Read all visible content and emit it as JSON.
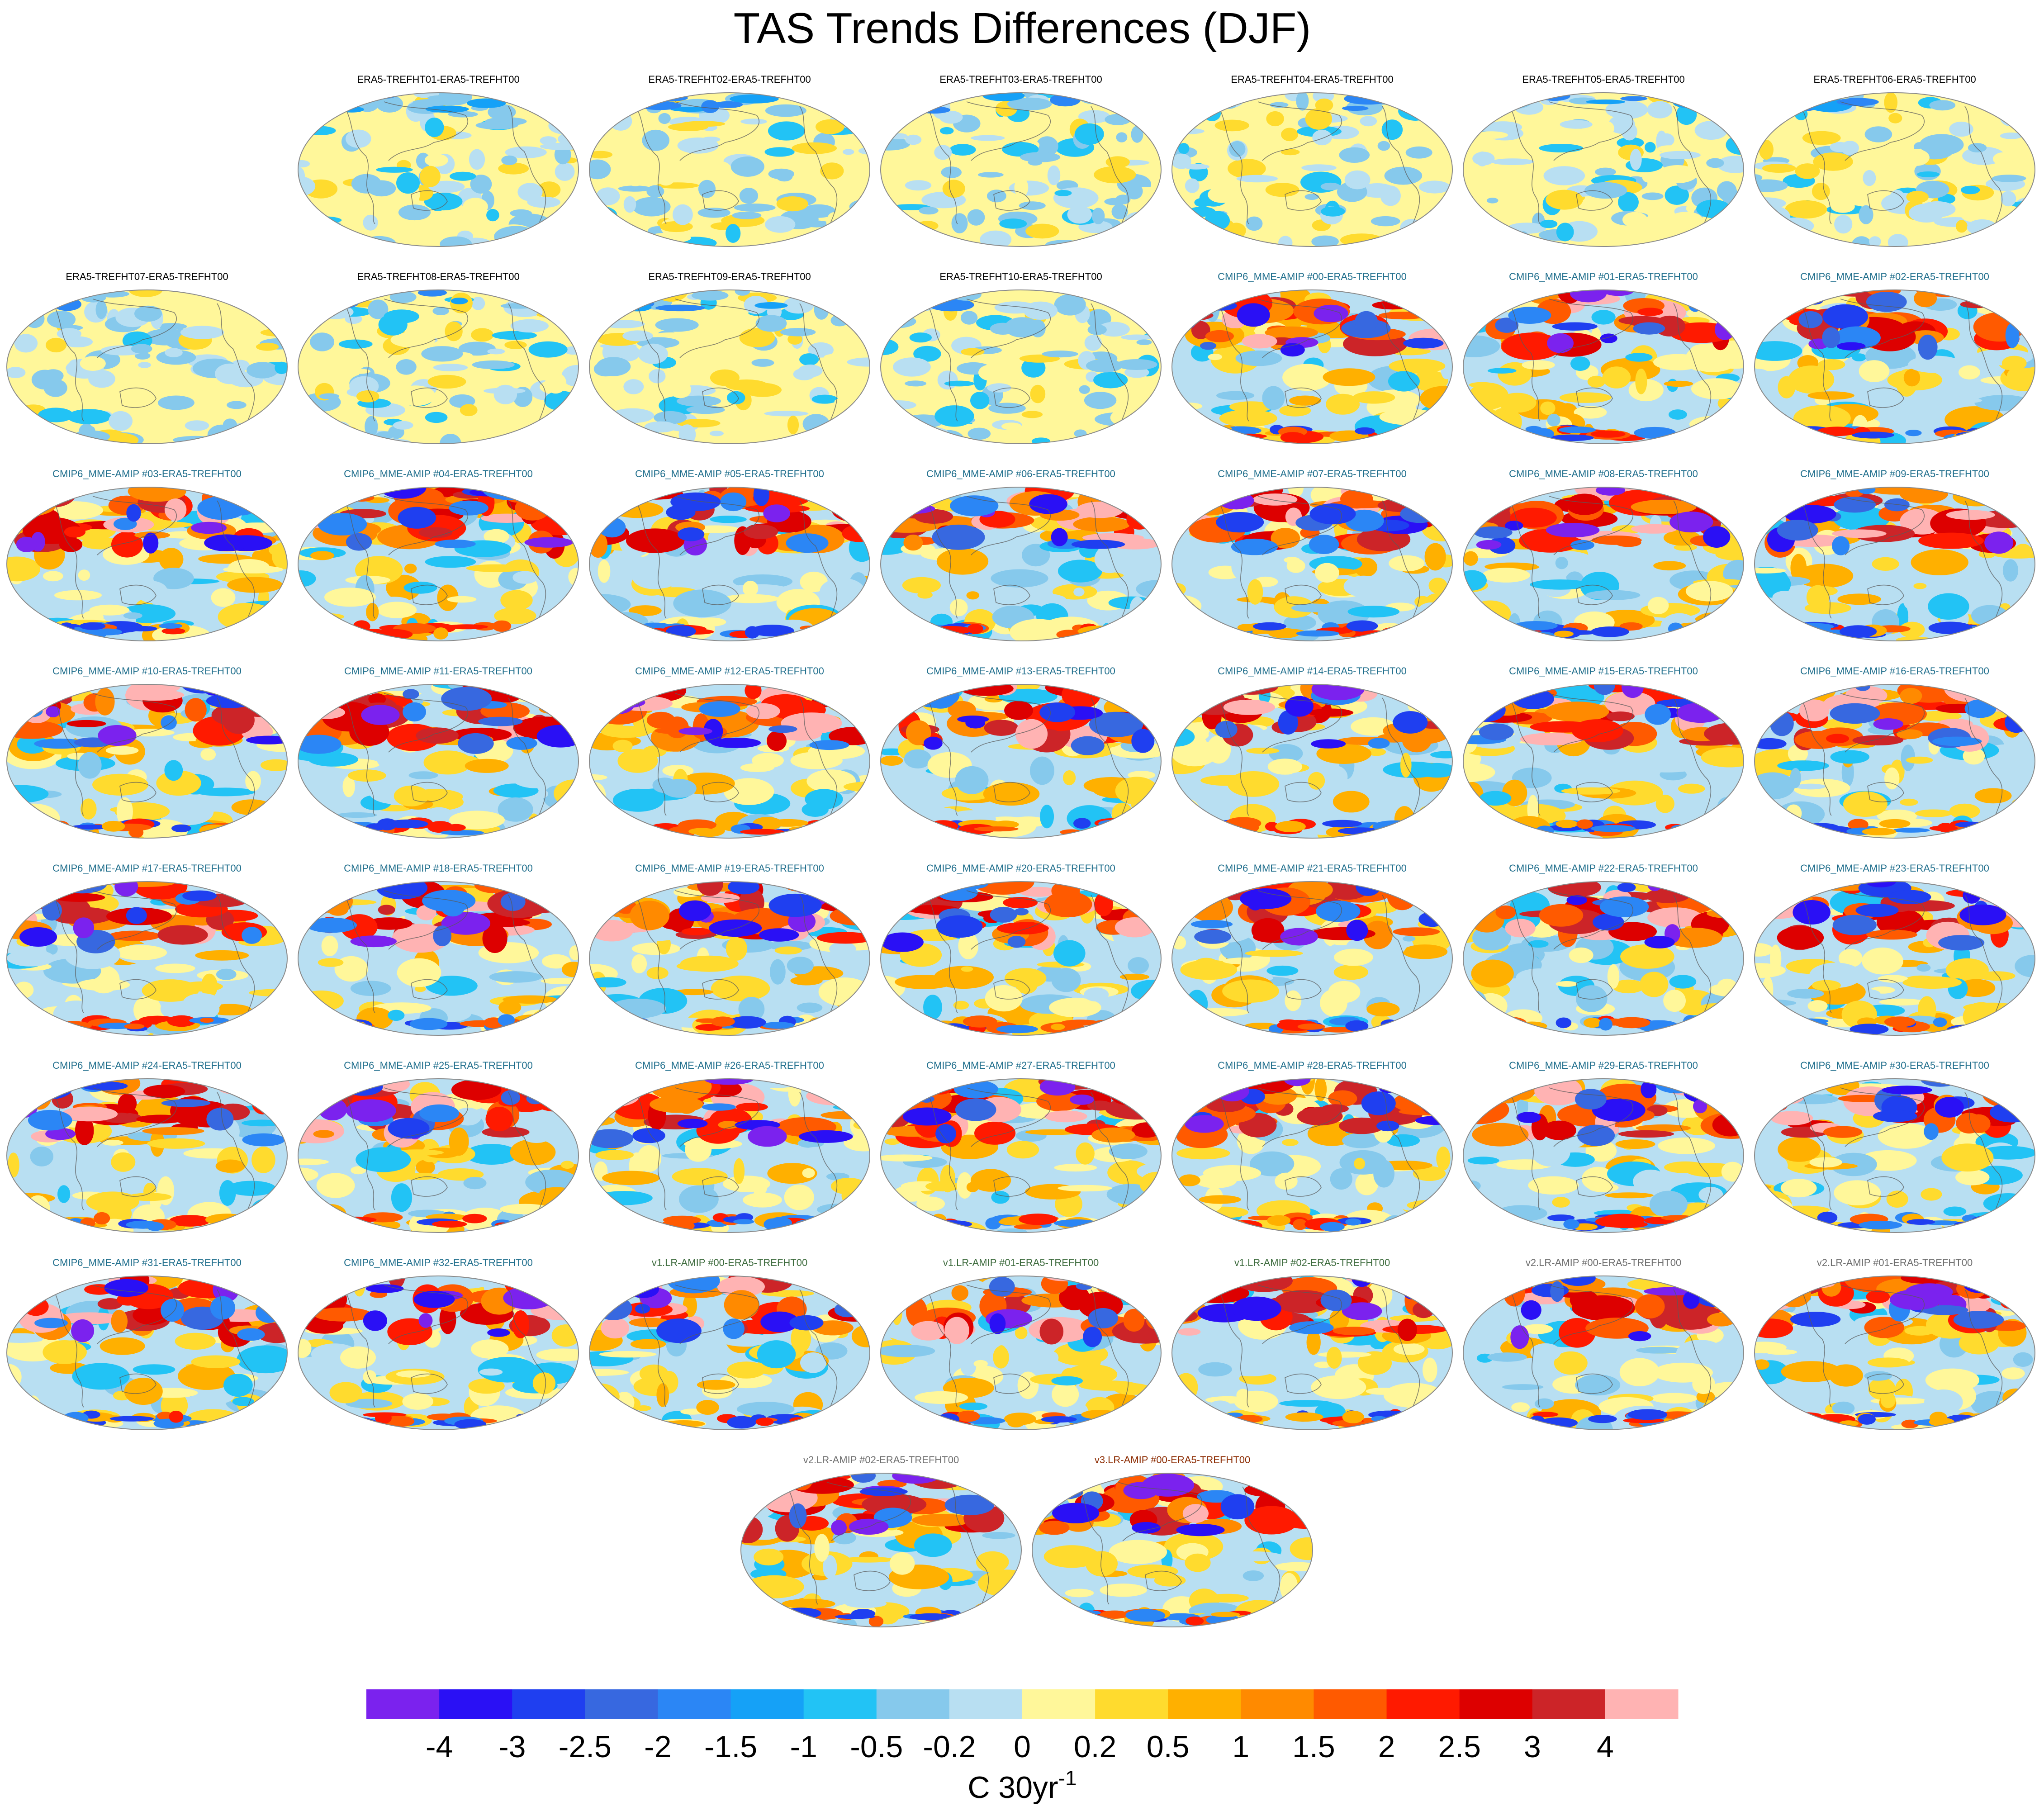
{
  "chart_data": {
    "type": "heatmap",
    "title": "TAS Trends Differences (DJF)",
    "projection": "Robinson-like global maps, one panel per ensemble member",
    "panels": [
      {
        "label": "ERA5-TREFHT01-ERA5-TREFHT00",
        "group": "era5",
        "color": "#000000"
      },
      {
        "label": "ERA5-TREFHT02-ERA5-TREFHT00",
        "group": "era5",
        "color": "#000000"
      },
      {
        "label": "ERA5-TREFHT03-ERA5-TREFHT00",
        "group": "era5",
        "color": "#000000"
      },
      {
        "label": "ERA5-TREFHT04-ERA5-TREFHT00",
        "group": "era5",
        "color": "#000000"
      },
      {
        "label": "ERA5-TREFHT05-ERA5-TREFHT00",
        "group": "era5",
        "color": "#000000"
      },
      {
        "label": "ERA5-TREFHT06-ERA5-TREFHT00",
        "group": "era5",
        "color": "#000000"
      },
      {
        "label": "ERA5-TREFHT07-ERA5-TREFHT00",
        "group": "era5",
        "color": "#000000"
      },
      {
        "label": "ERA5-TREFHT08-ERA5-TREFHT00",
        "group": "era5",
        "color": "#000000"
      },
      {
        "label": "ERA5-TREFHT09-ERA5-TREFHT00",
        "group": "era5",
        "color": "#000000"
      },
      {
        "label": "ERA5-TREFHT10-ERA5-TREFHT00",
        "group": "era5",
        "color": "#000000"
      },
      {
        "label": "CMIP6_MME-AMIP  #00-ERA5-TREFHT00",
        "group": "cmip6",
        "color": "#1f6e8c"
      },
      {
        "label": "CMIP6_MME-AMIP  #01-ERA5-TREFHT00",
        "group": "cmip6",
        "color": "#1f6e8c"
      },
      {
        "label": "CMIP6_MME-AMIP  #02-ERA5-TREFHT00",
        "group": "cmip6",
        "color": "#1f6e8c"
      },
      {
        "label": "CMIP6_MME-AMIP  #03-ERA5-TREFHT00",
        "group": "cmip6",
        "color": "#1f6e8c"
      },
      {
        "label": "CMIP6_MME-AMIP  #04-ERA5-TREFHT00",
        "group": "cmip6",
        "color": "#1f6e8c"
      },
      {
        "label": "CMIP6_MME-AMIP  #05-ERA5-TREFHT00",
        "group": "cmip6",
        "color": "#1f6e8c"
      },
      {
        "label": "CMIP6_MME-AMIP  #06-ERA5-TREFHT00",
        "group": "cmip6",
        "color": "#1f6e8c"
      },
      {
        "label": "CMIP6_MME-AMIP  #07-ERA5-TREFHT00",
        "group": "cmip6",
        "color": "#1f6e8c"
      },
      {
        "label": "CMIP6_MME-AMIP  #08-ERA5-TREFHT00",
        "group": "cmip6",
        "color": "#1f6e8c"
      },
      {
        "label": "CMIP6_MME-AMIP  #09-ERA5-TREFHT00",
        "group": "cmip6",
        "color": "#1f6e8c"
      },
      {
        "label": "CMIP6_MME-AMIP  #10-ERA5-TREFHT00",
        "group": "cmip6",
        "color": "#1f6e8c"
      },
      {
        "label": "CMIP6_MME-AMIP  #11-ERA5-TREFHT00",
        "group": "cmip6",
        "color": "#1f6e8c"
      },
      {
        "label": "CMIP6_MME-AMIP  #12-ERA5-TREFHT00",
        "group": "cmip6",
        "color": "#1f6e8c"
      },
      {
        "label": "CMIP6_MME-AMIP  #13-ERA5-TREFHT00",
        "group": "cmip6",
        "color": "#1f6e8c"
      },
      {
        "label": "CMIP6_MME-AMIP  #14-ERA5-TREFHT00",
        "group": "cmip6",
        "color": "#1f6e8c"
      },
      {
        "label": "CMIP6_MME-AMIP  #15-ERA5-TREFHT00",
        "group": "cmip6",
        "color": "#1f6e8c"
      },
      {
        "label": "CMIP6_MME-AMIP  #16-ERA5-TREFHT00",
        "group": "cmip6",
        "color": "#1f6e8c"
      },
      {
        "label": "CMIP6_MME-AMIP  #17-ERA5-TREFHT00",
        "group": "cmip6",
        "color": "#1f6e8c"
      },
      {
        "label": "CMIP6_MME-AMIP  #18-ERA5-TREFHT00",
        "group": "cmip6",
        "color": "#1f6e8c"
      },
      {
        "label": "CMIP6_MME-AMIP  #19-ERA5-TREFHT00",
        "group": "cmip6",
        "color": "#1f6e8c"
      },
      {
        "label": "CMIP6_MME-AMIP  #20-ERA5-TREFHT00",
        "group": "cmip6",
        "color": "#1f6e8c"
      },
      {
        "label": "CMIP6_MME-AMIP  #21-ERA5-TREFHT00",
        "group": "cmip6",
        "color": "#1f6e8c"
      },
      {
        "label": "CMIP6_MME-AMIP  #22-ERA5-TREFHT00",
        "group": "cmip6",
        "color": "#1f6e8c"
      },
      {
        "label": "CMIP6_MME-AMIP  #23-ERA5-TREFHT00",
        "group": "cmip6",
        "color": "#1f6e8c"
      },
      {
        "label": "CMIP6_MME-AMIP  #24-ERA5-TREFHT00",
        "group": "cmip6",
        "color": "#1f6e8c"
      },
      {
        "label": "CMIP6_MME-AMIP  #25-ERA5-TREFHT00",
        "group": "cmip6",
        "color": "#1f6e8c"
      },
      {
        "label": "CMIP6_MME-AMIP  #26-ERA5-TREFHT00",
        "group": "cmip6",
        "color": "#1f6e8c"
      },
      {
        "label": "CMIP6_MME-AMIP  #27-ERA5-TREFHT00",
        "group": "cmip6",
        "color": "#1f6e8c"
      },
      {
        "label": "CMIP6_MME-AMIP  #28-ERA5-TREFHT00",
        "group": "cmip6",
        "color": "#1f6e8c"
      },
      {
        "label": "CMIP6_MME-AMIP  #29-ERA5-TREFHT00",
        "group": "cmip6",
        "color": "#1f6e8c"
      },
      {
        "label": "CMIP6_MME-AMIP  #30-ERA5-TREFHT00",
        "group": "cmip6",
        "color": "#1f6e8c"
      },
      {
        "label": "CMIP6_MME-AMIP  #31-ERA5-TREFHT00",
        "group": "cmip6",
        "color": "#1f6e8c"
      },
      {
        "label": "CMIP6_MME-AMIP  #32-ERA5-TREFHT00",
        "group": "cmip6",
        "color": "#1f6e8c"
      },
      {
        "label": "v1.LR-AMIP  #00-ERA5-TREFHT00",
        "group": "v1",
        "color": "#3d6b3d"
      },
      {
        "label": "v1.LR-AMIP  #01-ERA5-TREFHT00",
        "group": "v1",
        "color": "#3d6b3d"
      },
      {
        "label": "v1.LR-AMIP  #02-ERA5-TREFHT00",
        "group": "v1",
        "color": "#3d6b3d"
      },
      {
        "label": "v2.LR-AMIP  #00-ERA5-TREFHT00",
        "group": "v2",
        "color": "#6e6e6e"
      },
      {
        "label": "v2.LR-AMIP  #01-ERA5-TREFHT00",
        "group": "v2",
        "color": "#6e6e6e"
      },
      {
        "label": "v2.LR-AMIP  #02-ERA5-TREFHT00",
        "group": "v2",
        "color": "#6e6e6e"
      },
      {
        "label": "v3.LR-AMIP  #00-ERA5-TREFHT00",
        "group": "v3",
        "color": "#8b2a00"
      }
    ],
    "colorbar": {
      "tick_labels": [
        "-4",
        "-3",
        "-2.5",
        "-2",
        "-1.5",
        "-1",
        "-0.5",
        "-0.2",
        "0",
        "0.2",
        "0.5",
        "1",
        "1.5",
        "2",
        "2.5",
        "3",
        "4"
      ],
      "colors": [
        "#7b22ee",
        "#2a10f5",
        "#1f3ff0",
        "#3768e0",
        "#2b86f5",
        "#15a1f7",
        "#22c3f5",
        "#86c9ec",
        "#b8dff2",
        "#fff79a",
        "#ffdb2e",
        "#ffb000",
        "#ff8a00",
        "#ff5a00",
        "#ff1a00",
        "#dd0000",
        "#cc2428",
        "#ffb3b3"
      ],
      "units_main": "C 30yr",
      "units_exponent": "-1"
    }
  }
}
